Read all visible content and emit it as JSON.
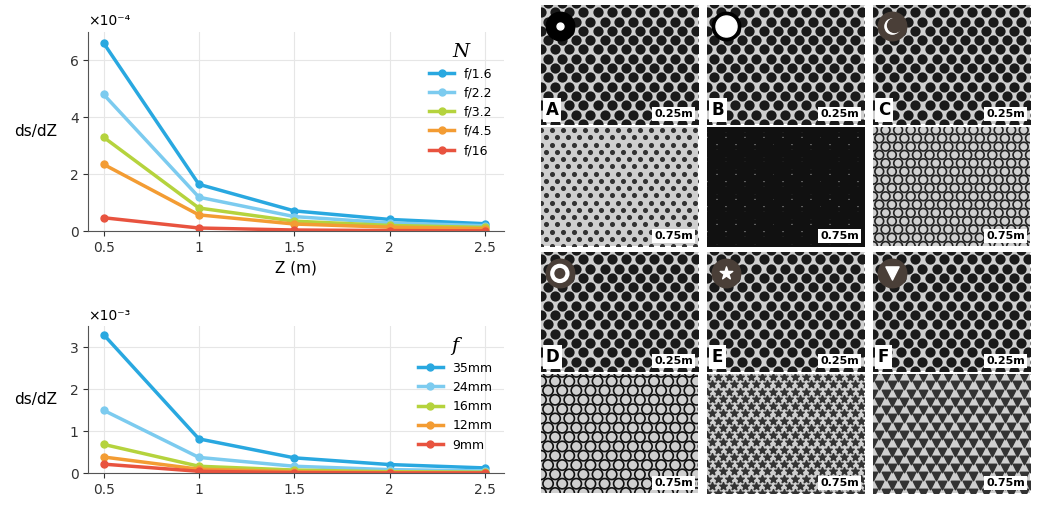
{
  "chart_data": [
    {
      "type": "line",
      "y_label": "ds/dZ",
      "x_label": "Z (m)",
      "annotations": [
        "×10⁻⁴"
      ],
      "legend_title": "N",
      "legend": "upper right",
      "grid": true,
      "marker": "o",
      "x": [
        0.5,
        1,
        1.5,
        2,
        2.5
      ],
      "xlim": [
        0.42,
        2.6
      ],
      "xticks": [
        0.5,
        1,
        1.5,
        2,
        2.5
      ],
      "ylim": [
        0,
        7
      ],
      "yticks": [
        0,
        2,
        4,
        6
      ],
      "series": [
        {
          "name": "f/1.6",
          "color": "#29a8e0",
          "values": [
            6.6,
            1.65,
            0.72,
            0.42,
            0.27
          ]
        },
        {
          "name": "f/2.2",
          "color": "#7ccbef",
          "values": [
            4.8,
            1.2,
            0.52,
            0.3,
            0.2
          ]
        },
        {
          "name": "f/3.2",
          "color": "#b5d33d",
          "values": [
            3.3,
            0.82,
            0.36,
            0.21,
            0.14
          ]
        },
        {
          "name": "f/4.5",
          "color": "#f39c33",
          "values": [
            2.35,
            0.58,
            0.26,
            0.15,
            0.1
          ]
        },
        {
          "name": "f/16",
          "color": "#e8533f",
          "values": [
            0.48,
            0.12,
            0.05,
            0.03,
            0.02
          ]
        }
      ]
    },
    {
      "type": "line",
      "y_label": "ds/dZ",
      "annotations": [
        "×10⁻³"
      ],
      "legend_title": "f",
      "legend": "upper right",
      "grid": true,
      "marker": "o",
      "x": [
        0.5,
        1,
        1.5,
        2,
        2.5
      ],
      "xlim": [
        0.42,
        2.6
      ],
      "xticks": [
        0.5,
        1,
        1.5,
        2,
        2.5
      ],
      "ylim": [
        0,
        3.5
      ],
      "yticks": [
        0,
        1,
        2,
        3
      ],
      "series": [
        {
          "name": "35mm",
          "color": "#29a8e0",
          "values": [
            3.3,
            0.82,
            0.37,
            0.21,
            0.13
          ]
        },
        {
          "name": "24mm",
          "color": "#7ccbef",
          "values": [
            1.5,
            0.38,
            0.17,
            0.09,
            0.06
          ]
        },
        {
          "name": "16mm",
          "color": "#b5d33d",
          "values": [
            0.69,
            0.17,
            0.08,
            0.04,
            0.03
          ]
        },
        {
          "name": "12mm",
          "color": "#f39c33",
          "values": [
            0.39,
            0.1,
            0.04,
            0.02,
            0.015
          ]
        },
        {
          "name": "9mm",
          "color": "#e8533f",
          "values": [
            0.22,
            0.05,
            0.02,
            0.01,
            0.01
          ]
        }
      ]
    }
  ],
  "panels": [
    {
      "label": "A",
      "distances": [
        "0.25m",
        "0.75m"
      ]
    },
    {
      "label": "B",
      "distances": [
        "0.25m",
        "0.75m"
      ]
    },
    {
      "label": "C",
      "distances": [
        "0.25m",
        "0.75m"
      ]
    },
    {
      "label": "D",
      "distances": [
        "0.25m",
        "0.75m"
      ]
    },
    {
      "label": "E",
      "distances": [
        "0.25m",
        "0.75m"
      ]
    },
    {
      "label": "F",
      "distances": [
        "0.25m",
        "0.75m"
      ]
    }
  ]
}
